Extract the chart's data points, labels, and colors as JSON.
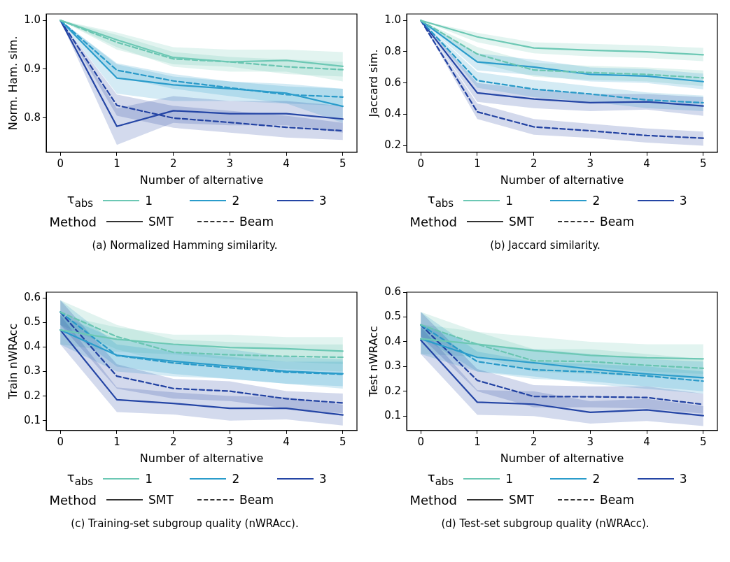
{
  "chart_data": [
    {
      "type": "line",
      "ylabel": "Norm. Ham. sim.",
      "xlabel": "Number of alternative",
      "legend_title": "τ$_{abs}$",
      "legend": "bottom",
      "annotations": [
        "Method",
        "SMT",
        "Beam",
        "(a) Normalized Hamming similarity."
      ],
      "x": [
        0,
        1,
        2,
        3,
        4,
        5
      ],
      "xlim": [
        -0.25,
        5.25
      ],
      "xticks": [
        0,
        1,
        2,
        3,
        4,
        5
      ],
      "ylim": [
        0.73,
        1.013
      ],
      "yticks": [
        0.8,
        0.9,
        {
          "value": 1,
          "label": "1.0"
        }
      ],
      "series": [
        {
          "name": "1",
          "color": "#6cc8b4",
          "line_style": "solid",
          "values": [
            1.0,
            0.96,
            0.924,
            0.915,
            0.918,
            0.906
          ],
          "lower": [
            1.0,
            0.945,
            0.905,
            0.895,
            0.895,
            0.875
          ],
          "upper": [
            1.0,
            0.975,
            0.945,
            0.94,
            0.94,
            0.935
          ]
        },
        {
          "color": "#69c5b1",
          "line_style": "dashed",
          "values": [
            1.0,
            0.955,
            0.921,
            0.915,
            0.905,
            0.899
          ],
          "lower": [
            1.0,
            0.94,
            0.91,
            0.905,
            0.89,
            0.885
          ],
          "upper": [
            1.0,
            0.97,
            0.935,
            0.925,
            0.92,
            0.915
          ]
        },
        {
          "name": "2",
          "color": "#2a9ccb",
          "line_style": "solid",
          "values": [
            1.0,
            0.882,
            0.868,
            0.86,
            0.851,
            0.824
          ],
          "lower": [
            1.0,
            0.85,
            0.835,
            0.835,
            0.83,
            0.79
          ],
          "upper": [
            1.0,
            0.91,
            0.885,
            0.875,
            0.87,
            0.86
          ]
        },
        {
          "color": "#2899c8",
          "line_style": "dashed",
          "values": [
            1.0,
            0.898,
            0.876,
            0.862,
            0.848,
            0.843
          ],
          "lower": [
            1.0,
            0.885,
            0.86,
            0.845,
            0.83,
            0.825
          ],
          "upper": [
            1.0,
            0.912,
            0.89,
            0.875,
            0.865,
            0.86
          ]
        },
        {
          "name": "3",
          "color": "#2445a5",
          "line_style": "solid",
          "values": [
            1.0,
            0.783,
            0.815,
            0.809,
            0.809,
            0.798
          ],
          "lower": [
            1.0,
            0.745,
            0.79,
            0.785,
            0.785,
            0.77
          ],
          "upper": [
            1.0,
            0.82,
            0.845,
            0.835,
            0.835,
            0.825
          ]
        },
        {
          "color": "#2242a2",
          "line_style": "dashed",
          "values": [
            1.0,
            0.826,
            0.8,
            0.791,
            0.781,
            0.774
          ],
          "lower": [
            1.0,
            0.805,
            0.78,
            0.77,
            0.76,
            0.755
          ],
          "upper": [
            1.0,
            0.848,
            0.825,
            0.815,
            0.805,
            0.79
          ]
        }
      ]
    },
    {
      "type": "line",
      "ylabel": "Jaccard sim.",
      "xlabel": "Number of alternative",
      "legend_title": "τ$_{abs}$",
      "legend": "bottom",
      "annotations": [
        "Method",
        "SMT",
        "Beam",
        "(b) Jaccard similarity."
      ],
      "x": [
        0,
        1,
        2,
        3,
        4,
        5
      ],
      "xlim": [
        -0.25,
        5.25
      ],
      "xticks": [
        0,
        1,
        2,
        3,
        4,
        5
      ],
      "ylim": [
        0.158,
        1.041
      ],
      "yticks": [
        0.2,
        0.4,
        0.6,
        0.8,
        {
          "value": 1,
          "label": "1.0"
        }
      ],
      "series": [
        {
          "name": "1",
          "color": "#6cc8b4",
          "line_style": "solid",
          "values": [
            1.0,
            0.895,
            0.824,
            0.809,
            0.799,
            0.78
          ],
          "lower": [
            1.0,
            0.86,
            0.79,
            0.77,
            0.76,
            0.74
          ],
          "upper": [
            1.0,
            0.92,
            0.86,
            0.85,
            0.84,
            0.825
          ]
        },
        {
          "color": "#69c5b1",
          "line_style": "dashed",
          "values": [
            1.0,
            0.785,
            0.683,
            0.667,
            0.655,
            0.633
          ],
          "lower": [
            1.0,
            0.73,
            0.64,
            0.62,
            0.61,
            0.58
          ],
          "upper": [
            1.0,
            0.83,
            0.73,
            0.71,
            0.7,
            0.68
          ]
        },
        {
          "name": "2",
          "color": "#2a9ccb",
          "line_style": "solid",
          "values": [
            1.0,
            0.735,
            0.702,
            0.655,
            0.644,
            0.609
          ],
          "lower": [
            1.0,
            0.68,
            0.65,
            0.61,
            0.6,
            0.56
          ],
          "upper": [
            1.0,
            0.79,
            0.75,
            0.7,
            0.69,
            0.66
          ]
        },
        {
          "color": "#2899c8",
          "line_style": "dashed",
          "values": [
            1.0,
            0.616,
            0.561,
            0.53,
            0.492,
            0.474
          ],
          "lower": [
            1.0,
            0.57,
            0.51,
            0.48,
            0.44,
            0.42
          ],
          "upper": [
            1.0,
            0.67,
            0.62,
            0.58,
            0.54,
            0.52
          ]
        },
        {
          "name": "3",
          "color": "#2445a5",
          "line_style": "solid",
          "values": [
            1.0,
            0.537,
            0.498,
            0.475,
            0.48,
            0.453
          ],
          "lower": [
            1.0,
            0.48,
            0.44,
            0.42,
            0.43,
            0.39
          ],
          "upper": [
            1.0,
            0.6,
            0.56,
            0.53,
            0.53,
            0.51
          ]
        },
        {
          "color": "#2242a2",
          "line_style": "dashed",
          "values": [
            1.0,
            0.416,
            0.32,
            0.295,
            0.265,
            0.248
          ],
          "lower": [
            1.0,
            0.37,
            0.27,
            0.25,
            0.22,
            0.2
          ],
          "upper": [
            1.0,
            0.47,
            0.37,
            0.34,
            0.31,
            0.29
          ]
        }
      ]
    },
    {
      "type": "line",
      "ylabel": "Train nWRAcc",
      "xlabel": "Number of alternative",
      "legend_title": "τ$_{abs}$",
      "legend": "bottom",
      "annotations": [
        "Method",
        "SMT",
        "Beam",
        "(c) Training-set subgroup quality (nWRAcc)."
      ],
      "x": [
        0,
        1,
        2,
        3,
        4,
        5
      ],
      "xlim": [
        -0.25,
        5.25
      ],
      "xticks": [
        0,
        1,
        2,
        3,
        4,
        5
      ],
      "ylim": [
        0.06,
        0.623
      ],
      "yticks": [
        0.1,
        0.2,
        0.3,
        0.4,
        0.5,
        0.6
      ],
      "series": [
        {
          "name": "1",
          "color": "#6cc8b4",
          "line_style": "solid",
          "values": [
            0.469,
            0.431,
            0.411,
            0.398,
            0.393,
            0.383
          ],
          "lower": [
            0.41,
            0.38,
            0.37,
            0.35,
            0.34,
            0.33
          ],
          "upper": [
            0.53,
            0.48,
            0.45,
            0.45,
            0.44,
            0.44
          ]
        },
        {
          "color": "#69c5b1",
          "line_style": "dashed",
          "values": [
            0.542,
            0.442,
            0.378,
            0.368,
            0.362,
            0.358
          ],
          "lower": [
            0.49,
            0.39,
            0.33,
            0.32,
            0.31,
            0.3
          ],
          "upper": [
            0.59,
            0.49,
            0.43,
            0.42,
            0.41,
            0.41
          ]
        },
        {
          "name": "2",
          "color": "#2a9ccb",
          "line_style": "solid",
          "values": [
            0.469,
            0.366,
            0.342,
            0.322,
            0.301,
            0.291
          ],
          "lower": [
            0.41,
            0.3,
            0.28,
            0.27,
            0.25,
            0.23
          ],
          "upper": [
            0.53,
            0.43,
            0.41,
            0.39,
            0.36,
            0.35
          ]
        },
        {
          "color": "#2899c8",
          "line_style": "dashed",
          "values": [
            0.542,
            0.365,
            0.335,
            0.315,
            0.297,
            0.289
          ],
          "lower": [
            0.49,
            0.32,
            0.29,
            0.27,
            0.25,
            0.24
          ],
          "upper": [
            0.59,
            0.41,
            0.38,
            0.36,
            0.34,
            0.34
          ]
        },
        {
          "name": "3",
          "color": "#2445a5",
          "line_style": "solid",
          "values": [
            0.469,
            0.185,
            0.17,
            0.15,
            0.15,
            0.123
          ],
          "lower": [
            0.41,
            0.135,
            0.125,
            0.1,
            0.105,
            0.08
          ],
          "upper": [
            0.53,
            0.235,
            0.215,
            0.2,
            0.195,
            0.165
          ]
        },
        {
          "color": "#2242a2",
          "line_style": "dashed",
          "values": [
            0.542,
            0.281,
            0.231,
            0.22,
            0.189,
            0.172
          ],
          "lower": [
            0.49,
            0.23,
            0.19,
            0.18,
            0.15,
            0.13
          ],
          "upper": [
            0.59,
            0.33,
            0.27,
            0.26,
            0.22,
            0.21
          ]
        }
      ]
    },
    {
      "type": "line",
      "ylabel": "Test nWRAcc",
      "xlabel": "Number of alternative",
      "legend_title": "τ$_{abs}$",
      "legend": "bottom",
      "annotations": [
        "Method",
        "SMT",
        "Beam",
        "(d) Test-set subgroup quality (nWRAcc)."
      ],
      "x": [
        0,
        1,
        2,
        3,
        4,
        5
      ],
      "xlim": [
        -0.25,
        5.25
      ],
      "xticks": [
        0,
        1,
        2,
        3,
        4,
        5
      ],
      "ylim": [
        0.042,
        0.6
      ],
      "yticks": [
        0.1,
        0.2,
        0.3,
        0.4,
        0.5,
        0.6
      ],
      "series": [
        {
          "name": "1",
          "color": "#6cc8b4",
          "line_style": "solid",
          "values": [
            0.412,
            0.39,
            0.364,
            0.345,
            0.335,
            0.331
          ],
          "lower": [
            0.35,
            0.34,
            0.31,
            0.3,
            0.28,
            0.27
          ],
          "upper": [
            0.47,
            0.44,
            0.42,
            0.4,
            0.39,
            0.39
          ]
        },
        {
          "color": "#69c5b1",
          "line_style": "dashed",
          "values": [
            0.468,
            0.39,
            0.323,
            0.32,
            0.305,
            0.293
          ],
          "lower": [
            0.42,
            0.34,
            0.28,
            0.27,
            0.26,
            0.25
          ],
          "upper": [
            0.52,
            0.44,
            0.37,
            0.37,
            0.35,
            0.33
          ]
        },
        {
          "name": "2",
          "color": "#2a9ccb",
          "line_style": "solid",
          "values": [
            0.412,
            0.337,
            0.315,
            0.29,
            0.27,
            0.255
          ],
          "lower": [
            0.35,
            0.28,
            0.26,
            0.23,
            0.21,
            0.19
          ],
          "upper": [
            0.47,
            0.39,
            0.37,
            0.35,
            0.33,
            0.32
          ]
        },
        {
          "color": "#2899c8",
          "line_style": "dashed",
          "values": [
            0.468,
            0.32,
            0.287,
            0.278,
            0.262,
            0.241
          ],
          "lower": [
            0.42,
            0.28,
            0.25,
            0.24,
            0.22,
            0.2
          ],
          "upper": [
            0.52,
            0.36,
            0.32,
            0.31,
            0.3,
            0.28
          ]
        },
        {
          "name": "3",
          "color": "#2445a5",
          "line_style": "solid",
          "values": [
            0.406,
            0.156,
            0.148,
            0.115,
            0.125,
            0.102
          ],
          "lower": [
            0.35,
            0.105,
            0.1,
            0.07,
            0.08,
            0.06
          ],
          "upper": [
            0.46,
            0.205,
            0.2,
            0.16,
            0.17,
            0.14
          ]
        },
        {
          "color": "#2242a2",
          "line_style": "dashed",
          "values": [
            0.468,
            0.244,
            0.179,
            0.178,
            0.175,
            0.147
          ],
          "lower": [
            0.42,
            0.2,
            0.135,
            0.135,
            0.13,
            0.11
          ],
          "upper": [
            0.52,
            0.29,
            0.225,
            0.22,
            0.22,
            0.19
          ]
        }
      ]
    }
  ]
}
